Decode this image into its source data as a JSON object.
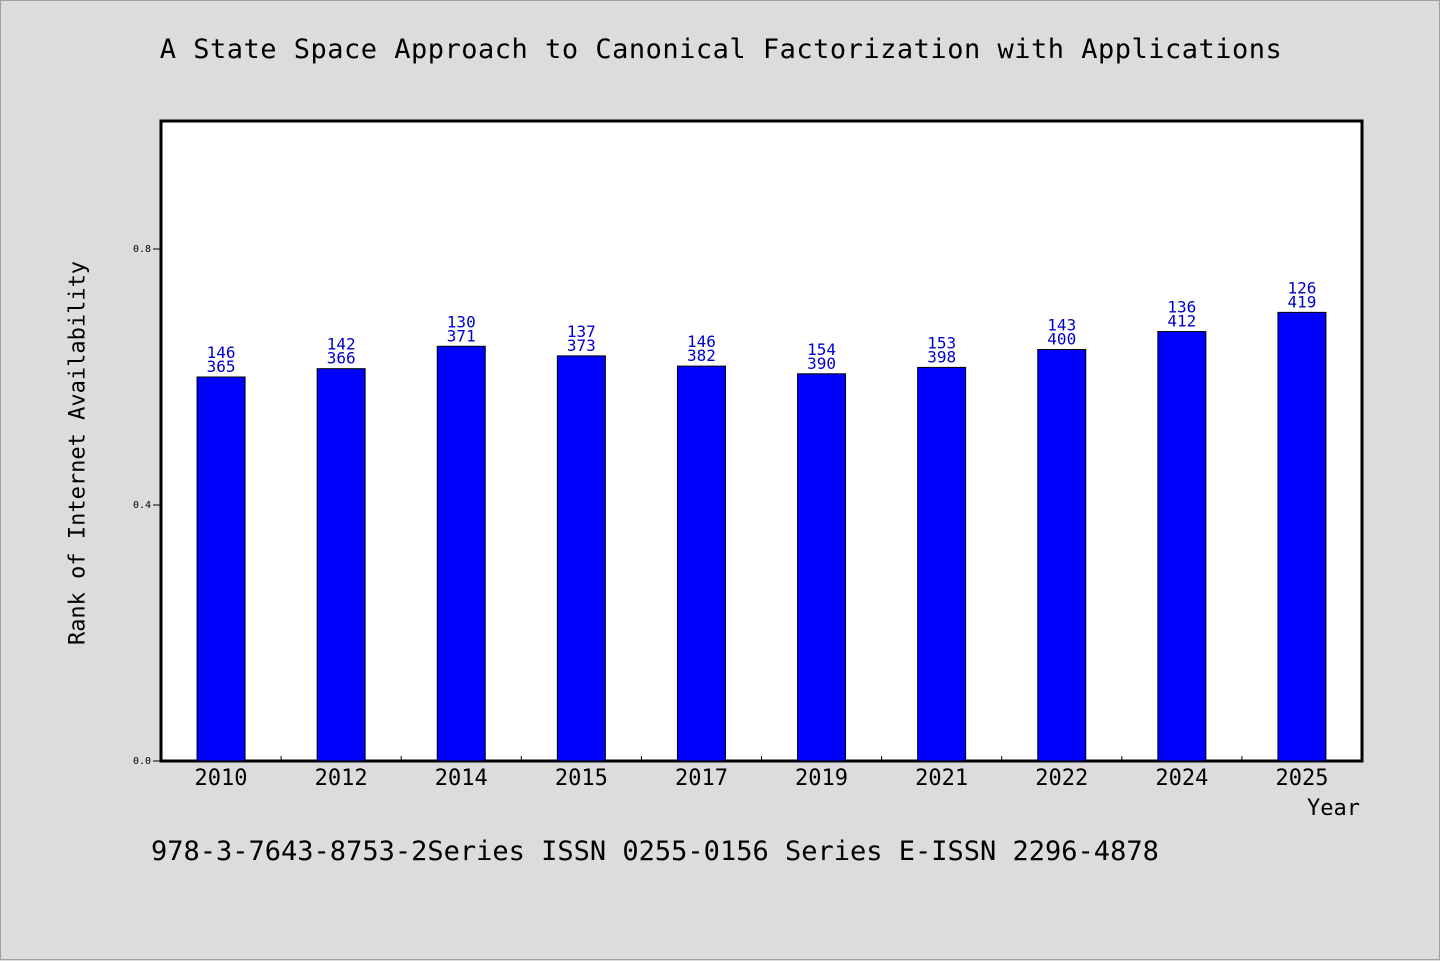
{
  "chart_data": {
    "type": "bar",
    "title": "A State Space Approach to Canonical Factorization with Applications",
    "xlabel": "Year",
    "ylabel": "Rank of Internet Availability",
    "categories": [
      "2010",
      "2012",
      "2014",
      "2015",
      "2017",
      "2019",
      "2021",
      "2022",
      "2024",
      "2025"
    ],
    "values": [
      0.6,
      0.613,
      0.648,
      0.633,
      0.617,
      0.605,
      0.615,
      0.643,
      0.671,
      0.701
    ],
    "label_top": [
      "146",
      "142",
      "130",
      "137",
      "146",
      "154",
      "153",
      "143",
      "136",
      "126"
    ],
    "label_bottom": [
      "365",
      "366",
      "371",
      "373",
      "382",
      "390",
      "398",
      "400",
      "412",
      "419"
    ],
    "yticks": [
      "0.0",
      "0.4",
      "0.8"
    ],
    "ylim": [
      0,
      1.0
    ],
    "grid": false,
    "legend": "none",
    "bar_color": "#0000ff",
    "label_color": "#0000cc"
  },
  "footer": "978-3-7643-8753-2Series ISSN 0255-0156 Series E-ISSN 2296-4878"
}
